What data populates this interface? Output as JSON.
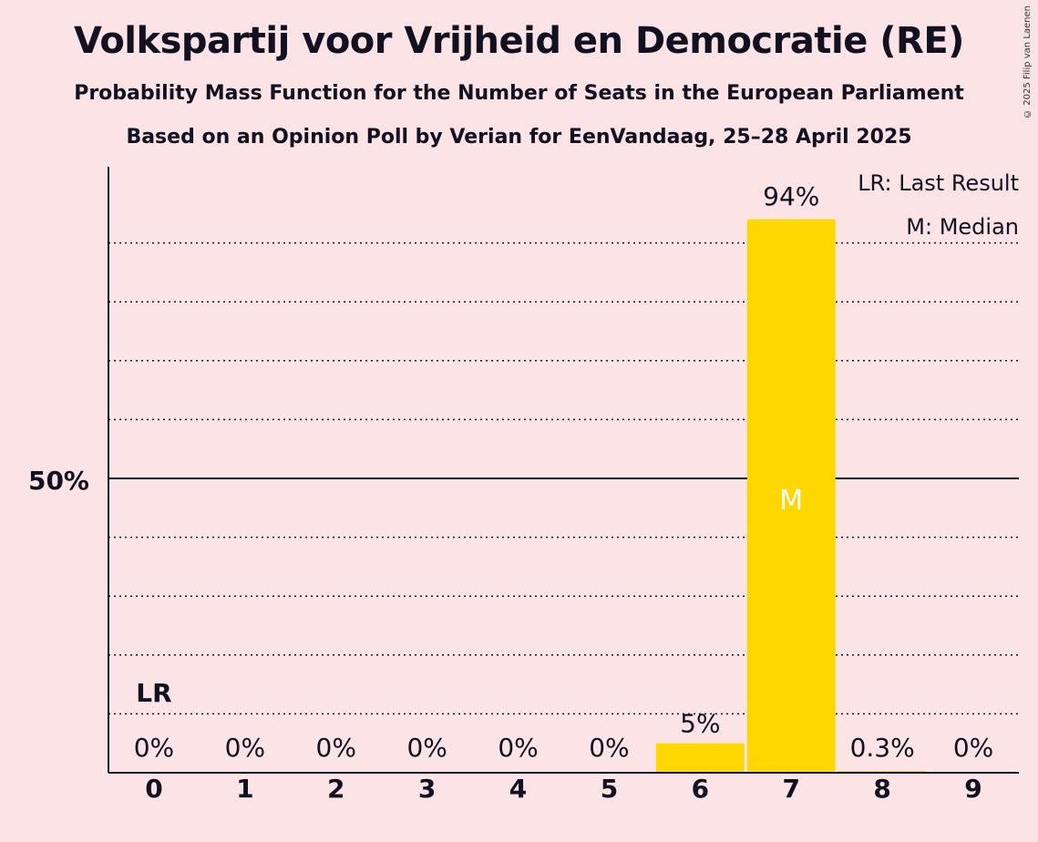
{
  "title": "Volkspartij voor Vrijheid en Democratie (RE)",
  "subtitle": "Probability Mass Function for the Number of Seats in the European Parliament",
  "subtitle2": "Based on an Opinion Poll by Verian for EenVandaag, 25–28 April 2025",
  "copyright": "© 2025 Filip van Laenen",
  "legend": {
    "last_result": "LR: Last Result",
    "median": "M: Median"
  },
  "colors": {
    "background": "#fce4e6",
    "bar": "#ffd700",
    "text": "#111122"
  },
  "chart_data": {
    "type": "bar",
    "categories": [
      "0",
      "1",
      "2",
      "3",
      "4",
      "5",
      "6",
      "7",
      "8",
      "9"
    ],
    "values": [
      0,
      0,
      0,
      0,
      0,
      0,
      5,
      94,
      0.3,
      0
    ],
    "labels": [
      "0%",
      "0%",
      "0%",
      "0%",
      "0%",
      "0%",
      "5%",
      "94%",
      "0.3%",
      "0%"
    ],
    "ylim": [
      0,
      100
    ],
    "y_ticks": [
      {
        "value": 50,
        "label": "50%"
      }
    ],
    "gridlines_dotted_every": 10,
    "last_result": {
      "seats": 0,
      "label": "LR"
    },
    "median": {
      "seats": 7,
      "label": "M"
    },
    "grid": true,
    "legend_position": "top-right"
  }
}
